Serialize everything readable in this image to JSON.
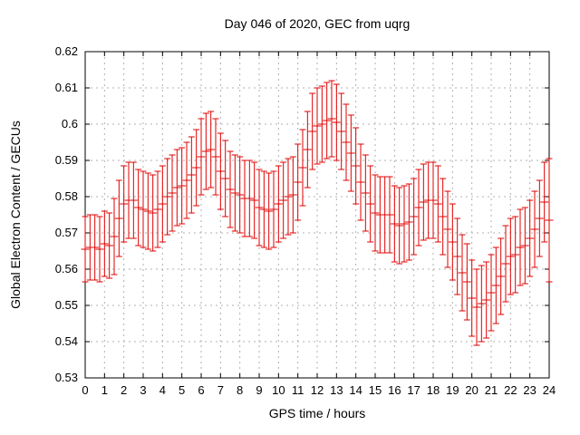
{
  "chart": {
    "background_color": "#ffffff",
    "border_color": "#000000",
    "grid_color": "#b0b0b0",
    "series_color": "#e10000",
    "title": "Day 046 of 2020, GEC from uqrg",
    "xlabel": "GPS time / hours",
    "ylabel": "Global Electron Content / GECUs"
  },
  "chart_data": {
    "type": "line",
    "style": "yerrorbars",
    "title": "Day 046 of 2020, GEC from uqrg",
    "xlabel": "GPS time / hours",
    "ylabel": "Global Electron Content / GECUs",
    "xlim": [
      0,
      24
    ],
    "ylim": [
      0.53,
      0.62
    ],
    "grid": true,
    "legend": "none",
    "x_tick_values": [
      0,
      1,
      2,
      3,
      4,
      5,
      6,
      7,
      8,
      9,
      10,
      11,
      12,
      13,
      14,
      15,
      16,
      17,
      18,
      19,
      20,
      21,
      22,
      23,
      24
    ],
    "x_tick_labels": [
      "0",
      "1",
      "2",
      "3",
      "4",
      "5",
      "6",
      "7",
      "8",
      "9",
      "10",
      "11",
      "12",
      "13",
      "14",
      "15",
      "16",
      "17",
      "18",
      "19",
      "20",
      "21",
      "22",
      "23",
      "24"
    ],
    "y_tick_values": [
      0.53,
      0.54,
      0.55,
      0.56,
      0.57,
      0.58,
      0.59,
      0.6,
      0.61,
      0.62
    ],
    "y_tick_labels": [
      "0.53",
      "0.54",
      "0.55",
      "0.56",
      "0.57",
      "0.58",
      "0.59",
      "0.6",
      "0.61",
      "0.62"
    ],
    "x": [
      0,
      0.25,
      0.5,
      0.75,
      1,
      1.25,
      1.5,
      1.75,
      2,
      2.25,
      2.5,
      2.75,
      3,
      3.25,
      3.5,
      3.75,
      4,
      4.25,
      4.5,
      4.75,
      5,
      5.25,
      5.5,
      5.75,
      6,
      6.25,
      6.5,
      6.75,
      7,
      7.25,
      7.5,
      7.75,
      8,
      8.25,
      8.5,
      8.75,
      9,
      9.25,
      9.5,
      9.75,
      10,
      10.25,
      10.5,
      10.75,
      11,
      11.25,
      11.5,
      11.75,
      12,
      12.25,
      12.5,
      12.75,
      13,
      13.25,
      13.5,
      13.75,
      14,
      14.25,
      14.5,
      14.75,
      15,
      15.25,
      15.5,
      15.75,
      16,
      16.25,
      16.5,
      16.75,
      17,
      17.25,
      17.5,
      17.75,
      18,
      18.25,
      18.5,
      18.75,
      19,
      19.25,
      19.5,
      19.75,
      20,
      20.25,
      20.5,
      20.75,
      21,
      21.25,
      21.5,
      21.75,
      22,
      22.25,
      22.5,
      22.75,
      23,
      23.25,
      23.5,
      23.75,
      24
    ],
    "y": [
      0.5655,
      0.566,
      0.566,
      0.5655,
      0.567,
      0.5665,
      0.569,
      0.574,
      0.578,
      0.579,
      0.579,
      0.577,
      0.5765,
      0.576,
      0.5755,
      0.5765,
      0.578,
      0.58,
      0.581,
      0.5825,
      0.583,
      0.5845,
      0.586,
      0.588,
      0.591,
      0.5925,
      0.593,
      0.591,
      0.587,
      0.585,
      0.582,
      0.581,
      0.5805,
      0.5795,
      0.5795,
      0.579,
      0.577,
      0.5765,
      0.576,
      0.5765,
      0.578,
      0.579,
      0.58,
      0.5805,
      0.584,
      0.588,
      0.593,
      0.598,
      0.5995,
      0.6,
      0.601,
      0.6015,
      0.6005,
      0.598,
      0.595,
      0.592,
      0.5885,
      0.584,
      0.581,
      0.578,
      0.5755,
      0.575,
      0.575,
      0.575,
      0.5725,
      0.572,
      0.5725,
      0.573,
      0.5745,
      0.577,
      0.5785,
      0.579,
      0.579,
      0.578,
      0.5745,
      0.571,
      0.5675,
      0.5635,
      0.559,
      0.5565,
      0.552,
      0.5495,
      0.5505,
      0.5515,
      0.5535,
      0.5555,
      0.558,
      0.5615,
      0.5635,
      0.564,
      0.566,
      0.5665,
      0.5685,
      0.571,
      0.574,
      0.5785,
      0.5735
    ],
    "yerr": [
      0.009,
      0.009,
      0.009,
      0.009,
      0.009,
      0.009,
      0.0105,
      0.0105,
      0.0105,
      0.0105,
      0.0105,
      0.0105,
      0.0105,
      0.0105,
      0.0105,
      0.0105,
      0.0105,
      0.0105,
      0.0105,
      0.0105,
      0.0105,
      0.0105,
      0.0105,
      0.0105,
      0.0105,
      0.0105,
      0.0105,
      0.0105,
      0.0105,
      0.0105,
      0.0105,
      0.0105,
      0.0105,
      0.0105,
      0.0105,
      0.0105,
      0.0105,
      0.0105,
      0.0105,
      0.0105,
      0.0105,
      0.0105,
      0.0105,
      0.0105,
      0.0105,
      0.0105,
      0.0105,
      0.0105,
      0.0105,
      0.0105,
      0.0105,
      0.0105,
      0.0105,
      0.0105,
      0.0105,
      0.0105,
      0.0105,
      0.0105,
      0.0105,
      0.0105,
      0.0105,
      0.0105,
      0.0105,
      0.0105,
      0.0105,
      0.0105,
      0.0105,
      0.0105,
      0.0105,
      0.0105,
      0.0105,
      0.0105,
      0.0105,
      0.0105,
      0.0105,
      0.0105,
      0.0105,
      0.0105,
      0.0105,
      0.0105,
      0.0105,
      0.0105,
      0.0105,
      0.0105,
      0.0105,
      0.0105,
      0.0105,
      0.0105,
      0.0105,
      0.0105,
      0.0105,
      0.0105,
      0.0105,
      0.0105,
      0.0105,
      0.011,
      0.017
    ]
  }
}
